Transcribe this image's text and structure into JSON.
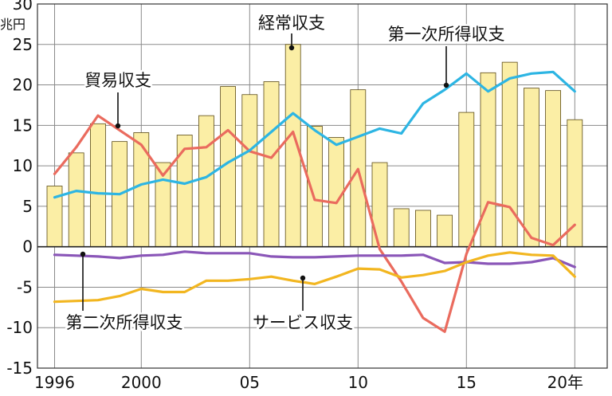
{
  "chart_data": {
    "type": "bar",
    "unit_label": "兆円",
    "x": [
      1996,
      1997,
      1998,
      1999,
      2000,
      2001,
      2002,
      2003,
      2004,
      2005,
      2006,
      2007,
      2008,
      2009,
      2010,
      2011,
      2012,
      2013,
      2014,
      2015,
      2016,
      2017,
      2018,
      2019,
      2020
    ],
    "x_tick_labels": [
      {
        "year": 1996,
        "label": "1996"
      },
      {
        "year": 2000,
        "label": "2000"
      },
      {
        "year": 2005,
        "label": "05"
      },
      {
        "year": 2010,
        "label": "10"
      },
      {
        "year": 2015,
        "label": "15"
      },
      {
        "year": 2020,
        "label": "20年"
      }
    ],
    "ylim": [
      -15,
      30
    ],
    "y_ticks": [
      -15,
      -10,
      -5,
      0,
      5,
      10,
      15,
      20,
      25,
      30
    ],
    "grid": true,
    "colors": {
      "bar_fill": "#fbeea5",
      "bar_stroke": "#5b4a14",
      "current": "#fbeea5",
      "trade": "#ea6b5e",
      "primary": "#2db5e3",
      "secondary": "#8a56b8",
      "services": "#f2b620",
      "grid": "#8a8a8a",
      "axis": "#333333"
    },
    "series": [
      {
        "key": "current",
        "name": "経常収支",
        "kind": "bar",
        "values": [
          7.5,
          11.6,
          15.2,
          13.0,
          14.1,
          10.4,
          13.8,
          16.2,
          19.8,
          18.8,
          20.4,
          25.0,
          14.9,
          13.5,
          19.4,
          10.4,
          4.7,
          4.5,
          3.9,
          16.6,
          21.5,
          22.8,
          19.6,
          19.3,
          15.7
        ]
      },
      {
        "key": "trade",
        "name": "貿易収支",
        "kind": "line",
        "values": [
          9.0,
          12.3,
          16.2,
          14.4,
          12.6,
          8.8,
          12.1,
          12.3,
          14.4,
          11.8,
          11.0,
          14.2,
          5.8,
          5.4,
          9.6,
          -0.3,
          -4.3,
          -8.8,
          -10.5,
          -0.9,
          5.5,
          4.9,
          1.1,
          0.2,
          2.7
        ]
      },
      {
        "key": "primary",
        "name": "第一次所得収支",
        "kind": "line",
        "values": [
          6.1,
          6.9,
          6.6,
          6.5,
          7.7,
          8.3,
          7.8,
          8.6,
          10.4,
          11.9,
          14.2,
          16.5,
          14.4,
          12.6,
          13.6,
          14.6,
          14.0,
          17.7,
          19.4,
          21.4,
          19.2,
          20.8,
          21.4,
          21.6,
          19.2
        ]
      },
      {
        "key": "secondary",
        "name": "第二次所得収支",
        "kind": "line",
        "values": [
          -1.0,
          -1.1,
          -1.2,
          -1.4,
          -1.1,
          -1.0,
          -0.6,
          -0.8,
          -0.8,
          -0.8,
          -1.2,
          -1.3,
          -1.3,
          -1.2,
          -1.1,
          -1.1,
          -1.1,
          -1.0,
          -2.0,
          -1.9,
          -2.1,
          -2.1,
          -1.9,
          -1.4,
          -2.5
        ]
      },
      {
        "key": "services",
        "name": "サービス収支",
        "kind": "line",
        "values": [
          -6.8,
          -6.7,
          -6.6,
          -6.1,
          -5.2,
          -5.6,
          -5.6,
          -4.2,
          -4.2,
          -4.0,
          -3.7,
          -4.2,
          -4.6,
          -3.7,
          -2.7,
          -2.8,
          -3.8,
          -3.5,
          -3.0,
          -1.9,
          -1.1,
          -0.7,
          -1.0,
          -1.1,
          -3.7
        ]
      }
    ],
    "annotations": [
      {
        "series": "current",
        "text": "経常収支"
      },
      {
        "series": "trade",
        "text": "貿易収支"
      },
      {
        "series": "primary",
        "text": "第一次所得収支"
      },
      {
        "series": "secondary",
        "text": "第二次所得収支"
      },
      {
        "series": "services",
        "text": "サービス収支"
      }
    ]
  }
}
